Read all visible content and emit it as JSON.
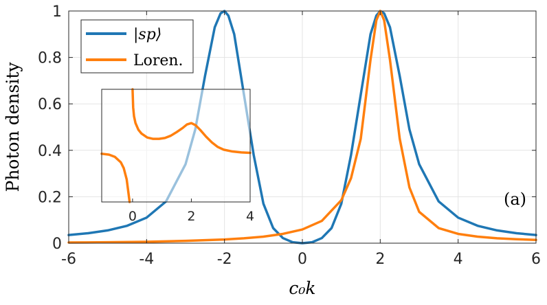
{
  "chart_data": [
    {
      "type": "line",
      "xlabel": "c₀k",
      "ylabel": "Photon density",
      "xlim": [
        -6,
        6
      ],
      "ylim": [
        0,
        1
      ],
      "xticks": [
        -6,
        -4,
        -2,
        0,
        2,
        4,
        6
      ],
      "xtick_labels": [
        "-6",
        "-4",
        "-2",
        "0",
        "2",
        "4",
        "6"
      ],
      "yticks": [
        0,
        0.2,
        0.4,
        0.6,
        0.8,
        1
      ],
      "ytick_labels": [
        "0",
        "0.2",
        "0.4",
        "0.6",
        "0.8",
        "1"
      ],
      "grid": true,
      "legend_position": "top-left",
      "annotation": "(a)",
      "series": [
        {
          "name": "|sp⟩",
          "color": "#1f77b4",
          "x": [
            -6,
            -5.5,
            -5,
            -4.5,
            -4,
            -3.5,
            -3,
            -2.75,
            -2.5,
            -2.25,
            -2.1,
            -2,
            -1.9,
            -1.75,
            -1.5,
            -1.25,
            -1,
            -0.75,
            -0.5,
            -0.25,
            0,
            0.25,
            0.5,
            0.75,
            1,
            1.25,
            1.5,
            1.75,
            1.9,
            2,
            2.1,
            2.25,
            2.5,
            2.75,
            3,
            3.5,
            4,
            4.5,
            5,
            5.5,
            6
          ],
          "y": [
            0.035,
            0.043,
            0.055,
            0.075,
            0.11,
            0.18,
            0.34,
            0.49,
            0.72,
            0.93,
            0.99,
            1.0,
            0.98,
            0.9,
            0.64,
            0.38,
            0.17,
            0.065,
            0.022,
            0.004,
            0.0,
            0.004,
            0.022,
            0.065,
            0.17,
            0.38,
            0.64,
            0.9,
            0.98,
            1.0,
            0.99,
            0.93,
            0.72,
            0.49,
            0.34,
            0.18,
            0.11,
            0.075,
            0.055,
            0.043,
            0.035
          ]
        },
        {
          "name": "Loren.",
          "color": "#ff7f0e",
          "x": [
            -6,
            -5,
            -4,
            -3,
            -2,
            -1.5,
            -1,
            -0.5,
            0,
            0.5,
            1,
            1.25,
            1.5,
            1.75,
            1.9,
            2,
            2.1,
            2.25,
            2.5,
            2.75,
            3,
            3.5,
            4,
            4.5,
            5,
            5.5,
            6
          ],
          "y": [
            0.003,
            0.004,
            0.006,
            0.01,
            0.016,
            0.021,
            0.028,
            0.04,
            0.059,
            0.096,
            0.185,
            0.28,
            0.45,
            0.79,
            0.96,
            1.0,
            0.96,
            0.79,
            0.45,
            0.24,
            0.135,
            0.065,
            0.04,
            0.028,
            0.021,
            0.017,
            0.014
          ]
        }
      ]
    },
    {
      "type": "line",
      "xlim": [
        -1.05,
        4
      ],
      "xticks": [
        0,
        2,
        4
      ],
      "xtick_labels": [
        "0",
        "2",
        "4"
      ],
      "ylim": [
        -1,
        1.5
      ],
      "grid": false,
      "series": [
        {
          "color": "#ff7f0e",
          "x": [
            -1.05,
            -0.8,
            -0.6,
            -0.4,
            -0.3,
            -0.2,
            -0.15,
            -0.1
          ],
          "y": [
            0.07,
            0.05,
            0.0,
            -0.12,
            -0.25,
            -0.5,
            -0.75,
            -1.0
          ]
        },
        {
          "color": "#ff7f0e",
          "x": [
            0.0,
            0.02,
            0.05,
            0.1,
            0.2,
            0.3,
            0.5,
            0.7,
            0.9,
            1.1,
            1.3,
            1.5,
            1.7,
            1.85,
            2.0,
            2.15,
            2.3,
            2.5,
            2.7,
            2.9,
            3.1,
            3.4,
            3.7,
            4.0
          ],
          "y": [
            1.5,
            1.1,
            0.9,
            0.75,
            0.6,
            0.52,
            0.43,
            0.4,
            0.4,
            0.42,
            0.47,
            0.55,
            0.64,
            0.72,
            0.75,
            0.7,
            0.6,
            0.45,
            0.32,
            0.22,
            0.16,
            0.12,
            0.1,
            0.09
          ]
        }
      ]
    }
  ]
}
